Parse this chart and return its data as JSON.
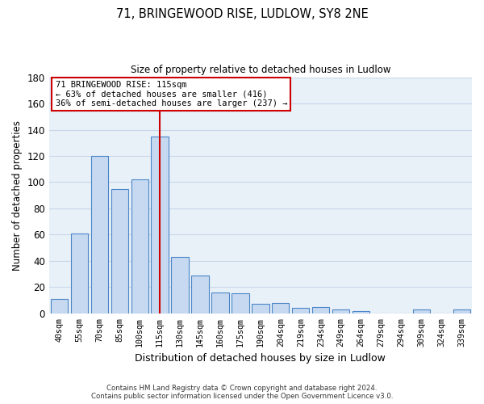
{
  "title": "71, BRINGEWOOD RISE, LUDLOW, SY8 2NE",
  "subtitle": "Size of property relative to detached houses in Ludlow",
  "xlabel": "Distribution of detached houses by size in Ludlow",
  "ylabel": "Number of detached properties",
  "bar_labels": [
    "40sqm",
    "55sqm",
    "70sqm",
    "85sqm",
    "100sqm",
    "115sqm",
    "130sqm",
    "145sqm",
    "160sqm",
    "175sqm",
    "190sqm",
    "204sqm",
    "219sqm",
    "234sqm",
    "249sqm",
    "264sqm",
    "279sqm",
    "294sqm",
    "309sqm",
    "324sqm",
    "339sqm"
  ],
  "bar_values": [
    11,
    61,
    120,
    95,
    102,
    135,
    43,
    29,
    16,
    15,
    7,
    8,
    4,
    5,
    3,
    2,
    0,
    0,
    3,
    0,
    3
  ],
  "bar_color": "#c6d9f0",
  "bar_edge_color": "#4a86c8",
  "vline_x_index": 5,
  "vline_color": "#cc0000",
  "ylim": [
    0,
    180
  ],
  "yticks": [
    0,
    20,
    40,
    60,
    80,
    100,
    120,
    140,
    160,
    180
  ],
  "annotation_title": "71 BRINGEWOOD RISE: 115sqm",
  "annotation_line1": "← 63% of detached houses are smaller (416)",
  "annotation_line2": "36% of semi-detached houses are larger (237) →",
  "annotation_box_color": "#ffffff",
  "annotation_box_edge": "#cc0000",
  "footer_line1": "Contains HM Land Registry data © Crown copyright and database right 2024.",
  "footer_line2": "Contains public sector information licensed under the Open Government Licence v3.0.",
  "background_color": "#ffffff",
  "plot_bg_color": "#e8f0f8",
  "grid_color": "#c8d8e8"
}
